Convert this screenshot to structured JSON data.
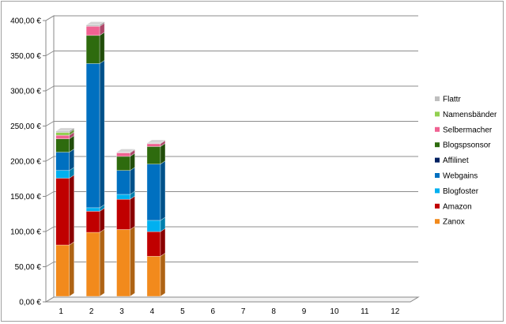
{
  "chart_data": {
    "type": "bar",
    "stacked": true,
    "three_d": true,
    "categories": [
      "1",
      "2",
      "3",
      "4",
      "5",
      "6",
      "7",
      "8",
      "9",
      "10",
      "11",
      "12"
    ],
    "ylim": [
      0,
      400
    ],
    "y_ticks": [
      "0,00 €",
      "50,00 €",
      "100,00 €",
      "150,00 €",
      "200,00 €",
      "250,00 €",
      "300,00 €",
      "350,00 €",
      "400,00 €"
    ],
    "grid": true,
    "legend_position": "right",
    "series": [
      {
        "name": "Zanox",
        "color": "#F28A1C",
        "values": [
          73,
          91,
          95,
          57,
          0,
          0,
          0,
          0,
          0,
          0,
          0,
          0
        ]
      },
      {
        "name": "Amazon",
        "color": "#C00000",
        "values": [
          95,
          30,
          43,
          35,
          0,
          0,
          0,
          0,
          0,
          0,
          0,
          0
        ]
      },
      {
        "name": "Blogfoster",
        "color": "#00B0F0",
        "values": [
          11,
          5,
          7,
          16,
          0,
          0,
          0,
          0,
          0,
          0,
          0,
          0
        ]
      },
      {
        "name": "Webgains",
        "color": "#0070C0",
        "values": [
          26,
          205,
          34,
          80,
          0,
          0,
          0,
          0,
          0,
          0,
          0,
          0
        ]
      },
      {
        "name": "Affilinet",
        "color": "#002060",
        "values": [
          0,
          0,
          0,
          0,
          0,
          0,
          0,
          0,
          0,
          0,
          0,
          0
        ]
      },
      {
        "name": "Blogspsonsor",
        "color": "#2E6B0E",
        "values": [
          19,
          40,
          20,
          25,
          0,
          0,
          0,
          0,
          0,
          0,
          0,
          0
        ]
      },
      {
        "name": "Selbermacher",
        "color": "#F06292",
        "values": [
          5,
          13,
          5,
          4,
          0,
          0,
          0,
          0,
          0,
          0,
          0,
          0
        ]
      },
      {
        "name": "Namensbänder",
        "color": "#92D050",
        "values": [
          4,
          0,
          0,
          0,
          0,
          0,
          0,
          0,
          0,
          0,
          0,
          0
        ]
      },
      {
        "name": "Flattr",
        "color": "#BFBFBF",
        "values": [
          2,
          2,
          1,
          1,
          0,
          0,
          0,
          0,
          0,
          0,
          0,
          0
        ]
      }
    ]
  }
}
